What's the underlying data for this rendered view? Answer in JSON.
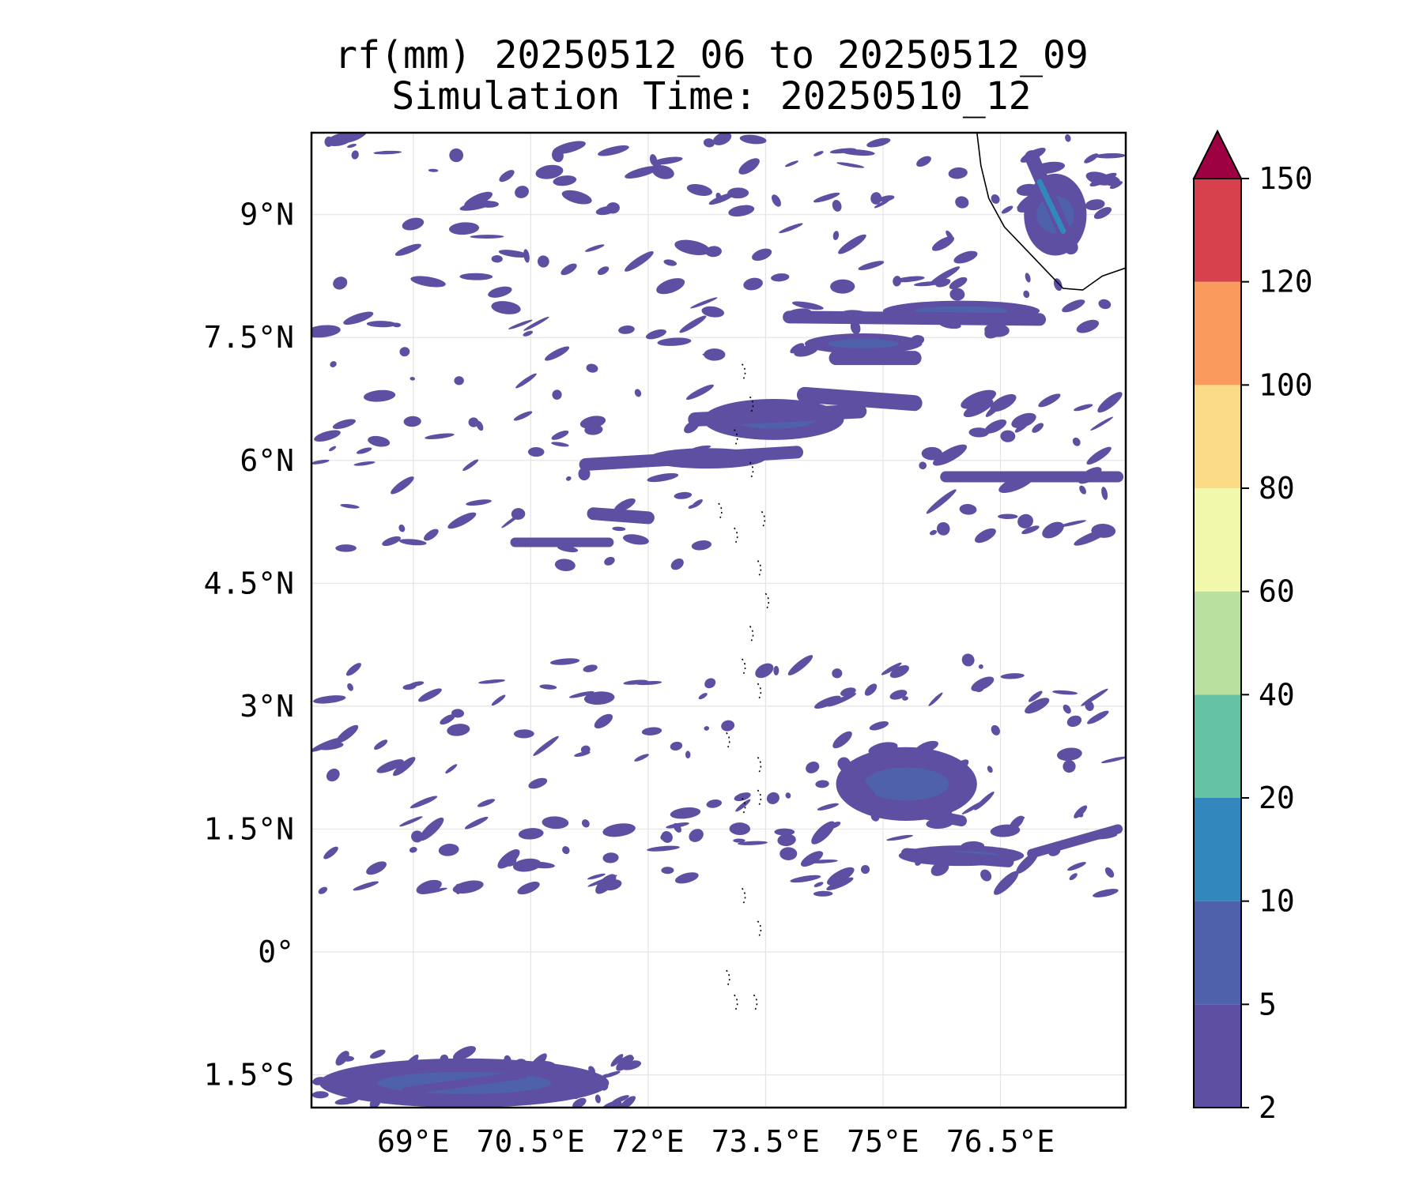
{
  "title_line1": "rf(mm) 20250512_06 to 20250512_09",
  "title_line2": "Simulation Time: 20250510_12",
  "map": {
    "lon_range": [
      67.7,
      78.1
    ],
    "lat_range": [
      -1.9,
      10.0
    ],
    "gridlines": true,
    "coastline": "southwest India (Kerala) in top-right corner; Maldives atolls shown as dotted outline near 73.5°E",
    "lon_ticks": [
      69,
      70.5,
      72,
      73.5,
      75,
      76.5
    ],
    "lon_tick_labels": [
      "69°E",
      "70.5°E",
      "72°E",
      "73.5°E",
      "75°E",
      "76.5°E"
    ],
    "lat_ticks": [
      9,
      7.5,
      6,
      4.5,
      3,
      1.5,
      0,
      -1.5
    ],
    "lat_tick_labels": [
      "9°N",
      "7.5°N",
      "6°N",
      "4.5°N",
      "3°N",
      "1.5°N",
      "0°",
      "1.5°S"
    ]
  },
  "colorbar": {
    "levels": [
      2,
      5,
      10,
      20,
      40,
      60,
      80,
      100,
      120,
      150
    ],
    "tick_labels": [
      "2",
      "5",
      "10",
      "20",
      "40",
      "60",
      "80",
      "100",
      "120",
      "150"
    ],
    "colors": [
      "#5e4fa2",
      "#4f61aa",
      "#3288bd",
      "#66c2a5",
      "#bae0a0",
      "#f1f7ab",
      "#fcdb87",
      "#f99b5b",
      "#d7414e"
    ],
    "extend_color": "#9e0142",
    "extend": "max"
  },
  "chart_data": {
    "type": "heatmap",
    "title": "rf(mm) 20250512_06 to 20250512_09",
    "subtitle": "Simulation Time: 20250510_12",
    "variable": "rf(mm)",
    "xlim": [
      67.7,
      78.1
    ],
    "ylim": [
      -1.9,
      10.0
    ],
    "rain_bands": [
      {
        "lon": [
          72.7,
          74.5
        ],
        "lat": [
          6.25,
          6.75
        ],
        "level": "2-5"
      },
      {
        "lon": [
          74.0,
          75.5
        ],
        "lat": [
          7.3,
          7.55
        ],
        "level": "5-10"
      },
      {
        "lon": [
          75.0,
          77.0
        ],
        "lat": [
          7.7,
          7.95
        ],
        "level": "5-10"
      },
      {
        "lon": [
          72.0,
          73.5
        ],
        "lat": [
          5.9,
          6.15
        ],
        "level": "2-5"
      },
      {
        "lon": [
          76.8,
          77.6
        ],
        "lat": [
          8.5,
          9.5
        ],
        "level": "5-20"
      },
      {
        "lon": [
          74.4,
          76.2
        ],
        "lat": [
          1.6,
          2.5
        ],
        "level": "5-10"
      },
      {
        "lon": [
          75.2,
          76.8
        ],
        "lat": [
          1.05,
          1.3
        ],
        "level": "2-5"
      },
      {
        "lon": [
          67.8,
          71.5
        ],
        "lat": [
          -1.9,
          -1.3
        ],
        "level": "2-5"
      }
    ]
  }
}
